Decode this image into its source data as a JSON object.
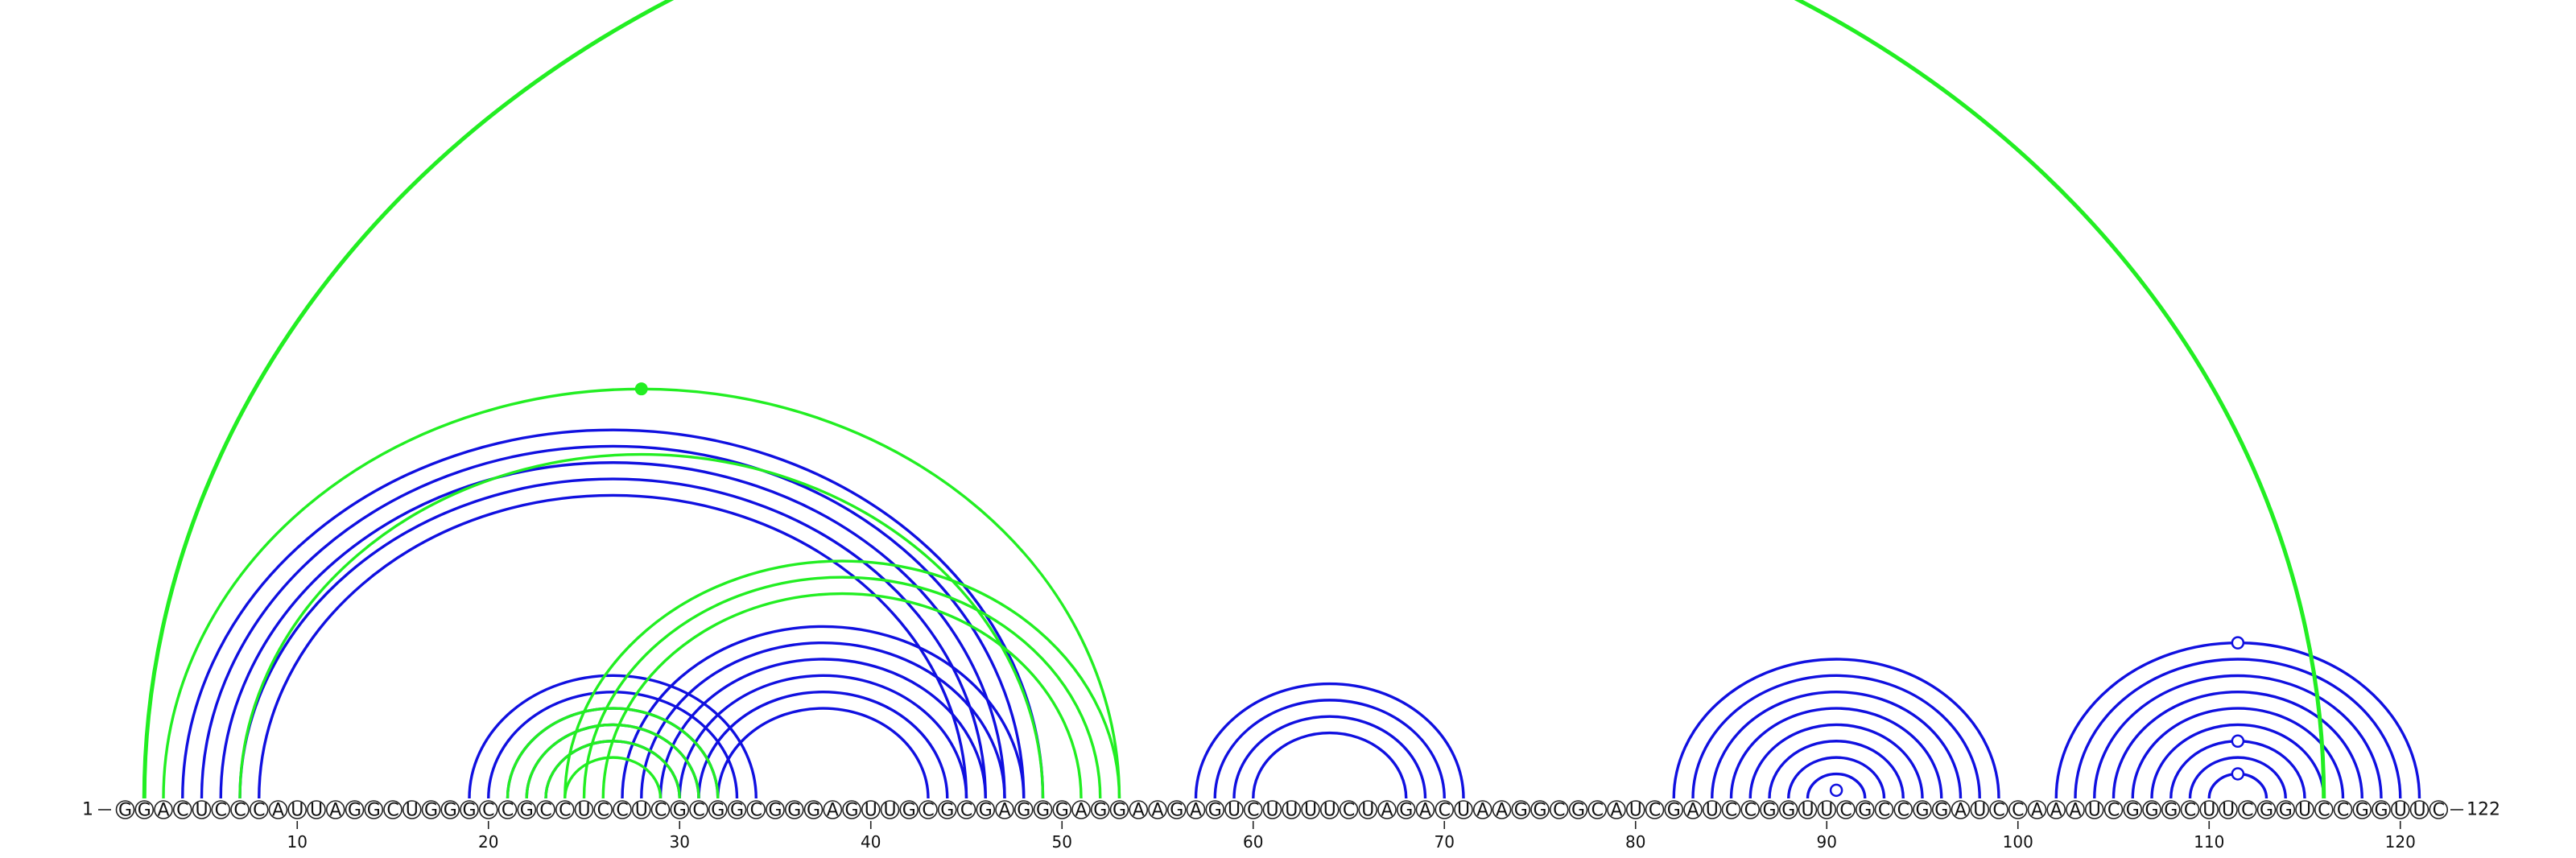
{
  "sequence": "GGACUCCCAUUAGGCUGGGCCGCCUCCUCGCGGCGGGAGUUGCGCGAGGGAGGAAGAGUCUUUUCUAGACUAAGGCGCAUCGAUCCGGUUCGCCGGAUCCAAAUCGGGCUUCGGUCCGGUUC",
  "start_label": "1",
  "end_label": "122",
  "ticks": [
    "10",
    "20",
    "30",
    "40",
    "50",
    "60",
    "70",
    "80",
    "90",
    "100",
    "110",
    "120"
  ],
  "colors": {
    "blue": "#1010e0",
    "green": "#22ee22",
    "base_outline": "#222222",
    "text": "#111111"
  },
  "chart_data": {
    "type": "arc-diagram",
    "length": 122,
    "blue_pairs": [
      [
        4,
        49
      ],
      [
        5,
        48
      ],
      [
        6,
        47
      ],
      [
        7,
        46
      ],
      [
        8,
        45
      ],
      [
        19,
        34
      ],
      [
        20,
        33
      ],
      [
        21,
        32
      ],
      [
        22,
        31
      ],
      [
        23,
        30
      ],
      [
        27,
        48
      ],
      [
        28,
        47
      ],
      [
        29,
        46
      ],
      [
        30,
        45
      ],
      [
        31,
        44
      ],
      [
        32,
        43
      ],
      [
        57,
        71
      ],
      [
        58,
        70
      ],
      [
        59,
        69
      ],
      [
        60,
        68
      ],
      [
        82,
        99
      ],
      [
        83,
        98
      ],
      [
        84,
        97
      ],
      [
        85,
        96
      ],
      [
        86,
        95
      ],
      [
        87,
        94
      ],
      [
        88,
        93
      ],
      [
        89,
        92
      ],
      [
        102,
        121
      ],
      [
        103,
        120
      ],
      [
        104,
        119
      ],
      [
        105,
        118
      ],
      [
        106,
        117
      ],
      [
        107,
        116
      ],
      [
        108,
        115
      ],
      [
        109,
        114
      ],
      [
        110,
        113
      ]
    ],
    "green_pairs": [
      [
        2,
        116
      ],
      [
        3,
        53
      ],
      [
        7,
        49
      ],
      [
        21,
        32
      ],
      [
        22,
        31
      ],
      [
        23,
        30
      ],
      [
        24,
        29
      ],
      [
        24,
        53
      ],
      [
        25,
        52
      ],
      [
        26,
        51
      ]
    ],
    "blue_markers": [
      {
        "i": 90,
        "j": 91
      },
      {
        "i": 102,
        "j": 121
      },
      {
        "i": 108,
        "j": 115
      },
      {
        "i": 110,
        "j": 113
      }
    ],
    "green_markers": [
      {
        "i": 3,
        "j": 53
      }
    ]
  }
}
